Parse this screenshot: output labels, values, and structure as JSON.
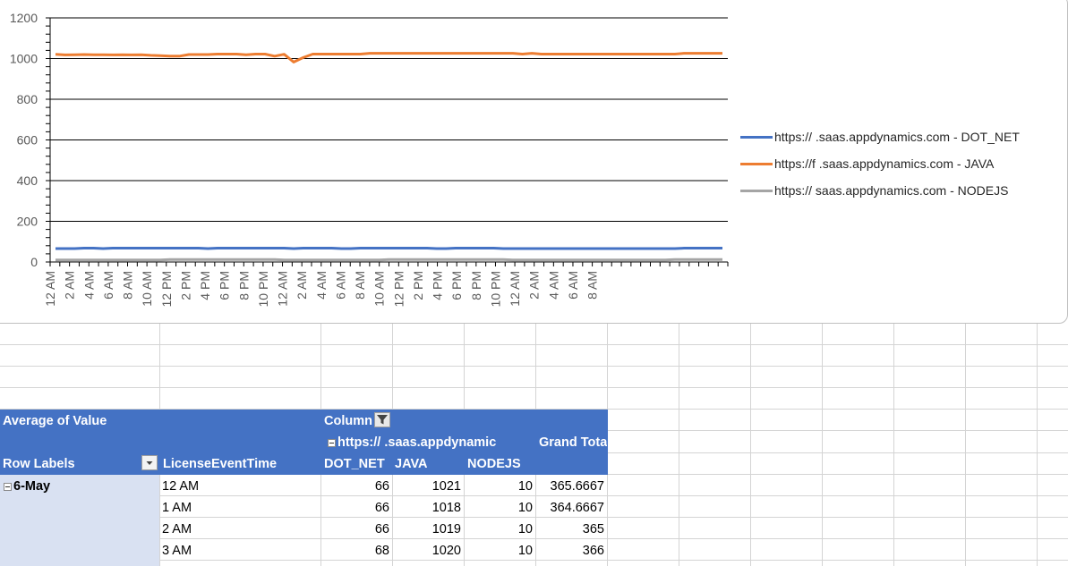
{
  "chart_data": {
    "type": "line",
    "y_ticks": [
      "0",
      "200",
      "400",
      "600",
      "800",
      "1000",
      "1200"
    ],
    "ylim": [
      0,
      1200
    ],
    "grid": true,
    "legend_position": "right",
    "x_labels": [
      "12 AM",
      "2 AM",
      "4 AM",
      "6 AM",
      "8 AM",
      "10 AM",
      "12 PM",
      "2 PM",
      "4 PM",
      "6 PM",
      "8 PM",
      "10 PM",
      "12 AM",
      "2 AM",
      "4 AM",
      "6 AM",
      "8 AM",
      "10 AM",
      "12 PM",
      "2 PM",
      "4 PM",
      "6 PM",
      "8 PM",
      "10 PM",
      "12 AM",
      "2 AM",
      "4 AM",
      "6 AM",
      "8 AM"
    ],
    "series": [
      {
        "name": "https://  .saas.appdynamics.com - DOT_NET",
        "color": "#4472c4",
        "values": [
          66,
          66,
          66,
          68,
          68,
          66,
          68,
          68,
          68,
          68,
          68,
          68,
          68,
          68,
          68,
          68,
          66,
          68,
          68,
          68,
          68,
          68,
          68,
          68,
          68,
          66,
          68,
          68,
          68,
          68,
          66,
          66,
          68,
          68,
          68,
          68,
          68,
          68,
          68,
          68,
          66,
          66,
          68,
          68,
          68,
          68,
          68,
          66,
          66,
          66,
          66,
          66,
          66,
          66,
          66,
          66,
          66,
          66,
          66,
          66,
          66,
          66,
          66,
          66,
          66,
          66,
          68,
          68,
          68,
          68,
          68
        ]
      },
      {
        "name": "https://f  .saas.appdynamics.com - JAVA",
        "color": "#ed7d31",
        "values": [
          1021,
          1018,
          1019,
          1020,
          1019,
          1019,
          1018,
          1019,
          1018,
          1019,
          1016,
          1014,
          1012,
          1012,
          1020,
          1020,
          1020,
          1022,
          1022,
          1022,
          1019,
          1022,
          1022,
          1012,
          1021,
          983,
          1005,
          1022,
          1022,
          1022,
          1022,
          1022,
          1022,
          1026,
          1026,
          1026,
          1026,
          1026,
          1026,
          1026,
          1026,
          1026,
          1026,
          1026,
          1026,
          1026,
          1026,
          1026,
          1026,
          1022,
          1026,
          1022,
          1022,
          1022,
          1022,
          1022,
          1022,
          1022,
          1022,
          1022,
          1022,
          1022,
          1022,
          1022,
          1022,
          1022,
          1026,
          1026,
          1026,
          1026,
          1026
        ]
      },
      {
        "name": "https://  saas.appdynamics.com - NODEJS",
        "color": "#a5a5a5",
        "values": [
          10,
          10,
          10,
          10,
          10,
          10,
          10,
          10,
          10,
          10,
          10,
          10,
          12,
          12,
          12,
          12,
          12,
          12,
          12,
          12,
          12,
          12,
          12,
          12,
          10,
          10,
          10,
          10,
          10,
          10,
          10,
          10,
          10,
          10,
          10,
          12,
          12,
          12,
          12,
          12,
          12,
          12,
          12,
          12,
          12,
          12,
          12,
          12,
          10,
          10,
          10,
          10,
          10,
          10,
          10,
          10,
          10,
          10,
          10,
          10,
          10,
          10,
          10,
          10,
          10,
          12,
          12,
          12,
          12,
          12,
          12
        ]
      }
    ]
  },
  "pivot": {
    "title": "Average of Value",
    "columns_label": "Column",
    "column_field_value": "https://  .saas.appdynamic",
    "grand_total_header": "Grand Tota",
    "row_labels_header": "Row Labels",
    "time_field_header": "LicenseEventTime",
    "col_dot_net": "DOT_NET",
    "col_java": "JAVA",
    "col_nodejs": "NODEJS",
    "group_label": "6-May",
    "rows": [
      {
        "time": "12 AM",
        "dot_net": "66",
        "java": "1021",
        "nodejs": "10",
        "total": "365.6667"
      },
      {
        "time": "1 AM",
        "dot_net": "66",
        "java": "1018",
        "nodejs": "10",
        "total": "364.6667"
      },
      {
        "time": "2 AM",
        "dot_net": "66",
        "java": "1019",
        "nodejs": "10",
        "total": "365"
      },
      {
        "time": "3 AM",
        "dot_net": "68",
        "java": "1020",
        "nodejs": "10",
        "total": "366"
      }
    ]
  }
}
